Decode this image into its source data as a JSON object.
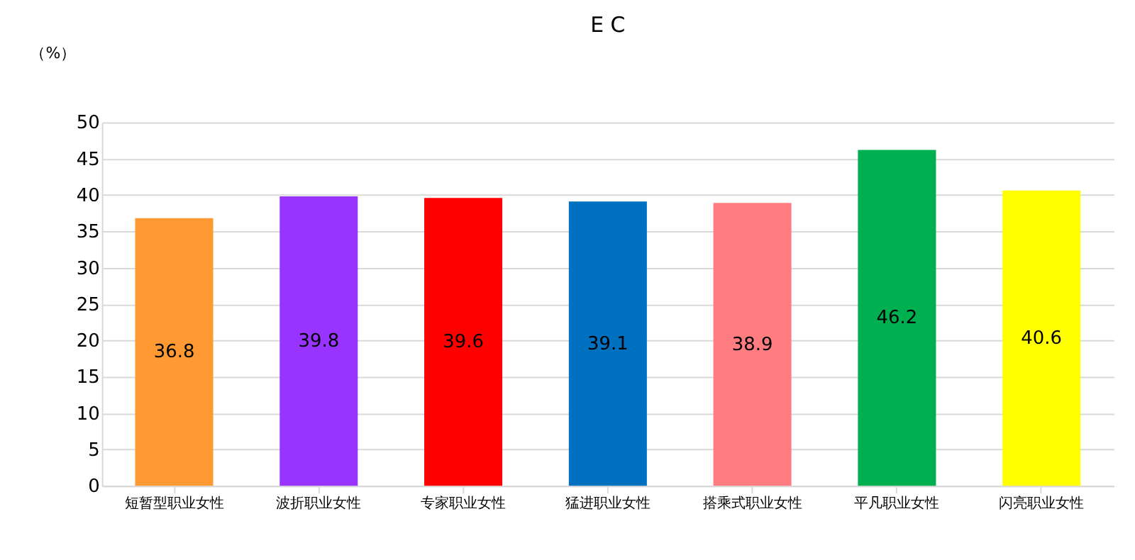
{
  "chart_data": {
    "type": "bar",
    "title": "E C",
    "ylabel": "（%）",
    "categories": [
      "短暂型职业女性",
      "波折职业女性",
      "专家职业女性",
      "猛进职业女性",
      "搭乘式职业女性",
      "平凡职业女性",
      "闪亮职业女性"
    ],
    "values": [
      36.8,
      39.8,
      39.6,
      39.1,
      38.9,
      46.2,
      40.6
    ],
    "colors": [
      "#ff9933",
      "#9933ff",
      "#ff0000",
      "#0070c0",
      "#ff7c80",
      "#00b050",
      "#ffff00"
    ],
    "ylim": [
      0,
      50
    ],
    "yticks": [
      0,
      5,
      10,
      15,
      20,
      25,
      30,
      35,
      40,
      45,
      50
    ],
    "grid": "y",
    "data_labels": true
  }
}
